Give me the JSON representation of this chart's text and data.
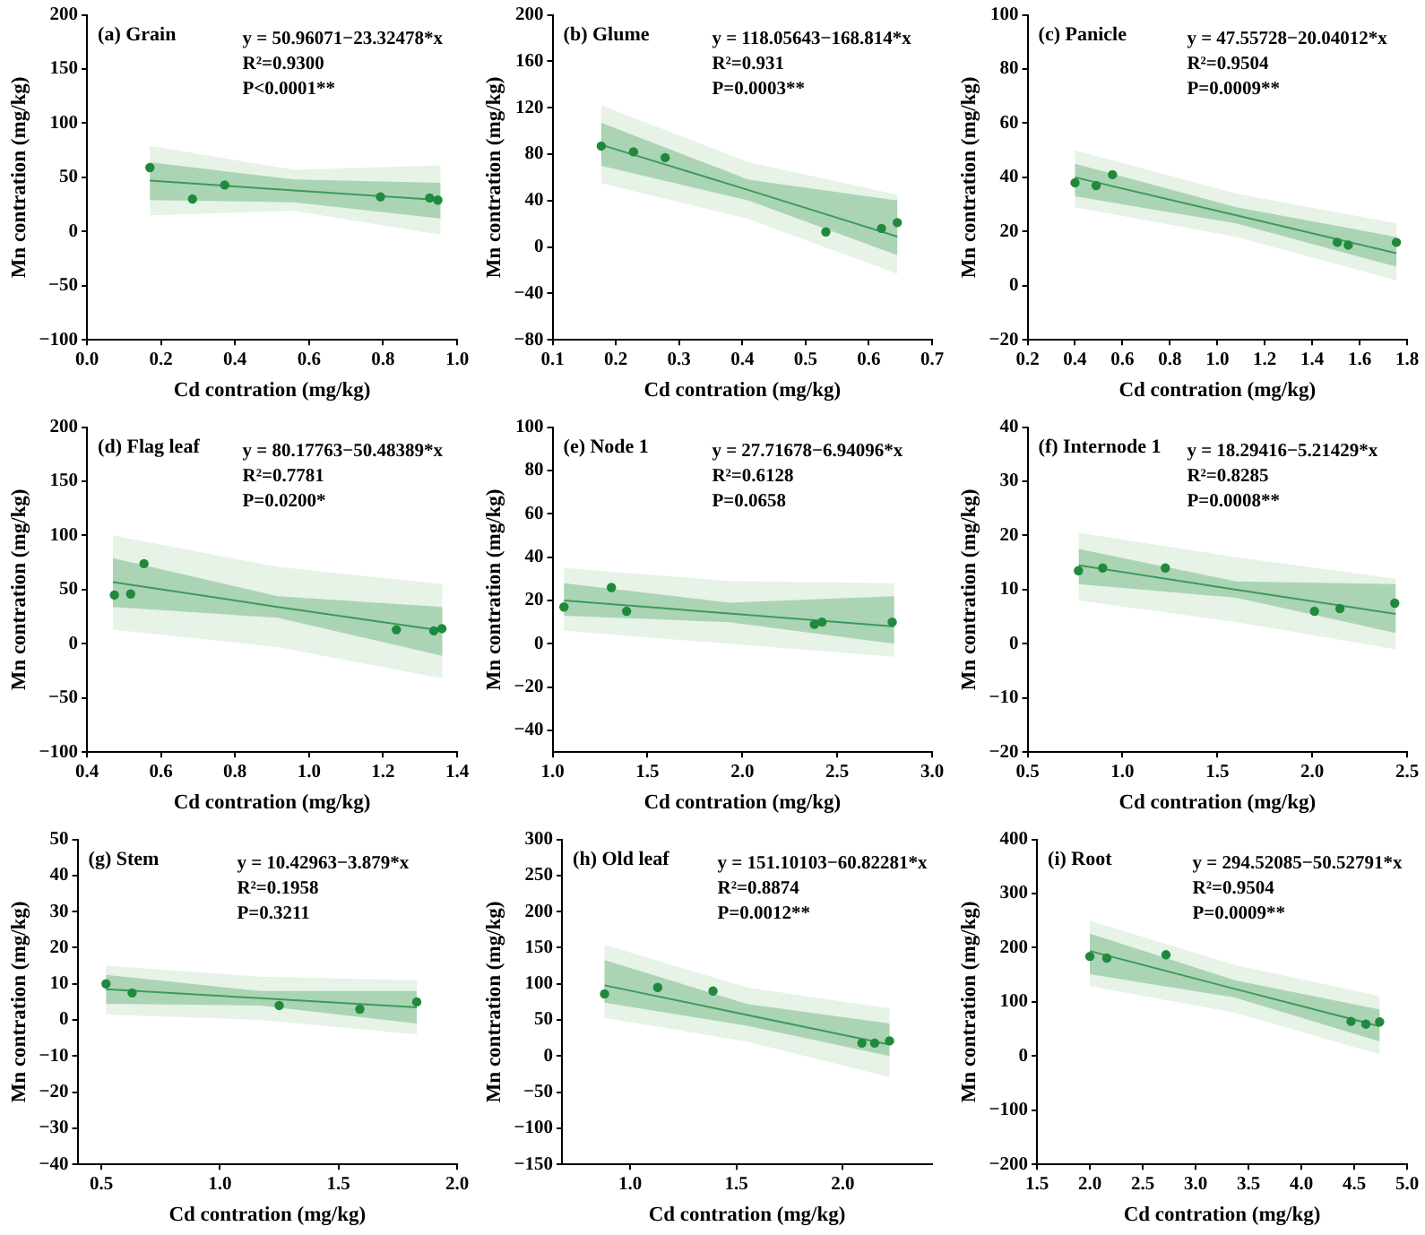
{
  "chart_data": [
    {
      "type": "scatter",
      "title": "(a) Grain",
      "xlabel": "Cd contration (mg/kg)",
      "ylabel": "Mn contration (mg/kg)",
      "xlim": [
        0,
        1
      ],
      "ylim": [
        -100,
        200
      ],
      "xticks": [
        {
          "value": 0,
          "label": "0.0"
        },
        0.2,
        0.4,
        0.6,
        0.8,
        {
          "value": 1,
          "label": "1.0"
        }
      ],
      "yticks": [
        -100,
        -50,
        0,
        50,
        100,
        150,
        200
      ],
      "annotations": [
        "y = 50.96071−23.32478*x",
        "R²=0.9300",
        "P<0.0001**"
      ],
      "series": [
        {
          "type": "line",
          "color": "#b8dcb8",
          "x": [
            0.17,
            0.56,
            0.955
          ],
          "values": [
            null,
            null,
            null
          ],
          "lower": [
            15,
            19,
            -3
          ],
          "upper": [
            79,
            57,
            61
          ]
        },
        {
          "type": "line",
          "color": "#3d9a5a",
          "x": [
            0.17,
            0.56,
            0.955
          ],
          "values": [
            47,
            38,
            29
          ],
          "lower": [
            29,
            27,
            12
          ],
          "upper": [
            64,
            48,
            45
          ]
        },
        {
          "type": "scatter",
          "color": "#1f8a3c",
          "marker": "circle",
          "x": [
            0.17,
            0.285,
            0.372,
            0.793,
            0.926,
            0.948
          ],
          "values": [
            59,
            30,
            43,
            32,
            31,
            29
          ]
        }
      ]
    },
    {
      "type": "scatter",
      "title": "(b) Glume",
      "xlabel": "Cd contration (mg/kg)",
      "ylabel": "Mn contration (mg/kg)",
      "xlim": [
        0.1,
        0.7
      ],
      "ylim": [
        -80,
        200
      ],
      "xticks": [
        0.1,
        0.2,
        0.3,
        0.4,
        0.5,
        0.6,
        0.7
      ],
      "yticks": [
        -80,
        -40,
        0,
        40,
        80,
        120,
        160,
        200
      ],
      "annotations": [
        "y = 118.05643−168.814*x",
        "R²=0.931",
        "P=0.0003**"
      ],
      "series": [
        {
          "type": "line",
          "color": "#b8dcb8",
          "x": [
            0.177,
            0.41,
            0.645
          ],
          "values": [
            null,
            null,
            null
          ],
          "lower": [
            55,
            24,
            -23
          ],
          "upper": [
            122,
            73,
            45
          ]
        },
        {
          "type": "line",
          "color": "#3d9a5a",
          "x": [
            0.177,
            0.41,
            0.645
          ],
          "values": [
            88,
            49,
            9
          ],
          "lower": [
            70,
            40,
            -7
          ],
          "upper": [
            107,
            58,
            40
          ]
        },
        {
          "type": "scatter",
          "color": "#1f8a3c",
          "marker": "circle",
          "x": [
            0.177,
            0.228,
            0.278,
            0.532,
            0.62,
            0.645
          ],
          "values": [
            87,
            82,
            77,
            13,
            16,
            21
          ]
        }
      ]
    },
    {
      "type": "scatter",
      "title": "(c) Panicle",
      "xlabel": "Cd contration (mg/kg)",
      "ylabel": "Mn contration (mg/kg)",
      "xlim": [
        0.2,
        1.8
      ],
      "ylim": [
        -20,
        100
      ],
      "xticks": [
        0.2,
        0.4,
        0.6,
        0.8,
        {
          "value": 1,
          "label": "1.0"
        },
        1.2,
        1.4,
        1.6,
        1.8
      ],
      "yticks": [
        -20,
        0,
        20,
        40,
        60,
        80,
        100
      ],
      "annotations": [
        "y = 47.55728−20.04012*x",
        "R²=0.9504",
        "P=0.0009**"
      ],
      "series": [
        {
          "type": "line",
          "color": "#b8dcb8",
          "x": [
            0.4,
            1.08,
            1.755
          ],
          "values": [
            null,
            null,
            null
          ],
          "lower": [
            29,
            18,
            2
          ],
          "upper": [
            50,
            34,
            23
          ]
        },
        {
          "type": "line",
          "color": "#3d9a5a",
          "x": [
            0.4,
            1.08,
            1.755
          ],
          "values": [
            40,
            26,
            12
          ],
          "lower": [
            33,
            23,
            7
          ],
          "upper": [
            45,
            29,
            18
          ]
        },
        {
          "type": "scatter",
          "color": "#1f8a3c",
          "marker": "circle",
          "x": [
            0.4,
            0.489,
            0.558,
            1.506,
            1.552,
            1.755
          ],
          "values": [
            38,
            37,
            41,
            16,
            15,
            16
          ]
        }
      ]
    },
    {
      "type": "scatter",
      "title": "(d) Flag leaf",
      "xlabel": "Cd contration (mg/kg)",
      "ylabel": "Mn contration (mg/kg)",
      "xlim": [
        0.4,
        1.4
      ],
      "ylim": [
        -100,
        200
      ],
      "xticks": [
        0.4,
        0.6,
        0.8,
        {
          "value": 1,
          "label": "1.0"
        },
        1.2,
        1.4
      ],
      "yticks": [
        -100,
        -50,
        0,
        50,
        100,
        150,
        200
      ],
      "annotations": [
        "y = 80.17763−50.48389*x",
        "R²=0.7781",
        "P=0.0200*"
      ],
      "series": [
        {
          "type": "line",
          "color": "#b8dcb8",
          "x": [
            0.47,
            0.915,
            1.36
          ],
          "values": [
            null,
            null,
            null
          ],
          "lower": [
            13,
            -3,
            -32
          ],
          "upper": [
            100,
            71,
            55
          ]
        },
        {
          "type": "line",
          "color": "#3d9a5a",
          "x": [
            0.47,
            0.915,
            1.36
          ],
          "values": [
            57,
            34,
            12
          ],
          "lower": [
            34,
            24,
            -11
          ],
          "upper": [
            79,
            44,
            34
          ]
        },
        {
          "type": "scatter",
          "color": "#1f8a3c",
          "marker": "circle",
          "x": [
            0.474,
            0.518,
            0.554,
            1.236,
            1.337,
            1.359
          ],
          "values": [
            45,
            46,
            74,
            13,
            12,
            14
          ]
        }
      ]
    },
    {
      "type": "scatter",
      "title": "(e) Node 1",
      "xlabel": "Cd contration (mg/kg)",
      "ylabel": "Mn contration (mg/kg)",
      "xlim": [
        1,
        3
      ],
      "ylim": [
        -50,
        100
      ],
      "xticks": [
        {
          "value": 1,
          "label": "1.0"
        },
        1.5,
        {
          "value": 2,
          "label": "2.0"
        },
        2.5,
        {
          "value": 3,
          "label": "3.0"
        }
      ],
      "yticks": [
        -40,
        -20,
        0,
        20,
        40,
        60,
        80,
        100
      ],
      "annotations": [
        "y = 27.71678−6.94096*x",
        "R²=0.6128",
        "P=0.0658"
      ],
      "series": [
        {
          "type": "line",
          "color": "#b8dcb8",
          "x": [
            1.06,
            1.93,
            2.8
          ],
          "values": [
            null,
            null,
            null
          ],
          "lower": [
            6,
            0,
            -6
          ],
          "upper": [
            35,
            29,
            28
          ]
        },
        {
          "type": "line",
          "color": "#3d9a5a",
          "x": [
            1.06,
            1.93,
            2.8
          ],
          "values": [
            20,
            14,
            8
          ],
          "lower": [
            13,
            10,
            0
          ],
          "upper": [
            28,
            19,
            22
          ]
        },
        {
          "type": "scatter",
          "color": "#1f8a3c",
          "marker": "circle",
          "x": [
            1.06,
            1.31,
            1.39,
            2.38,
            2.42,
            2.79
          ],
          "values": [
            17,
            26,
            15,
            9,
            10,
            10
          ]
        }
      ]
    },
    {
      "type": "scatter",
      "title": "(f) Internode 1",
      "xlabel": "Cd contration (mg/kg)",
      "ylabel": "Mn contration (mg/kg)",
      "xlim": [
        0.5,
        2.5
      ],
      "ylim": [
        -20,
        40
      ],
      "xticks": [
        0.5,
        {
          "value": 1,
          "label": "1.0"
        },
        1.5,
        {
          "value": 2,
          "label": "2.0"
        },
        2.5
      ],
      "yticks": [
        -20,
        -10,
        0,
        10,
        20,
        30,
        40
      ],
      "annotations": [
        "y = 18.29416−5.21429*x",
        "R²=0.8285",
        "P=0.0008**"
      ],
      "series": [
        {
          "type": "line",
          "color": "#b8dcb8",
          "x": [
            0.77,
            1.6,
            2.44
          ],
          "values": [
            null,
            null,
            null
          ],
          "lower": [
            8,
            4,
            -1
          ],
          "upper": [
            20.5,
            16,
            12
          ]
        },
        {
          "type": "line",
          "color": "#3d9a5a",
          "x": [
            0.77,
            1.6,
            2.44
          ],
          "values": [
            14.5,
            10,
            5.5
          ],
          "lower": [
            11,
            8.5,
            2
          ],
          "upper": [
            17.5,
            11.5,
            11
          ]
        },
        {
          "type": "scatter",
          "color": "#1f8a3c",
          "marker": "circle",
          "x": [
            0.768,
            0.896,
            1.226,
            2.012,
            2.146,
            2.435
          ],
          "values": [
            13.5,
            14,
            14,
            6,
            6.5,
            7.5
          ]
        }
      ]
    },
    {
      "type": "scatter",
      "title": "(g) Stem",
      "xlabel": "Cd contration (mg/kg)",
      "ylabel": "Mn contration (mg/kg)",
      "xlim": [
        0.4,
        2
      ],
      "ylim": [
        -40,
        50
      ],
      "xticks": [
        0.5,
        {
          "value": 1,
          "label": "1.0"
        },
        1.5,
        {
          "value": 2,
          "label": "2.0"
        }
      ],
      "yticks": [
        -40,
        -30,
        -20,
        -10,
        0,
        10,
        20,
        30,
        40,
        50
      ],
      "annotations": [
        "y = 10.42963−3.879*x",
        "R²=0.1958",
        "P=0.3211"
      ],
      "series": [
        {
          "type": "line",
          "color": "#b8dcb8",
          "x": [
            0.52,
            1.17,
            1.83
          ],
          "values": [
            null,
            null,
            null
          ],
          "lower": [
            1.5,
            0,
            -4
          ],
          "upper": [
            15,
            12,
            11
          ]
        },
        {
          "type": "line",
          "color": "#3d9a5a",
          "x": [
            0.52,
            1.17,
            1.83
          ],
          "values": [
            8.5,
            6,
            3.5
          ],
          "lower": [
            4.5,
            4,
            -1
          ],
          "upper": [
            12.5,
            8,
            8
          ]
        },
        {
          "type": "scatter",
          "color": "#1f8a3c",
          "marker": "circle",
          "x": [
            0.52,
            0.63,
            1.25,
            1.59,
            1.83
          ],
          "values": [
            10,
            7.5,
            4,
            3,
            5
          ]
        }
      ]
    },
    {
      "type": "scatter",
      "title": "(h) Old leaf",
      "xlabel": "Cd contration (mg/kg)",
      "ylabel": "Mn contration (mg/kg)",
      "xlim": [
        0.68,
        2.42
      ],
      "ylim": [
        -150,
        300
      ],
      "xticks": [
        {
          "value": 1,
          "label": "1.0"
        },
        1.5,
        {
          "value": 2,
          "label": "2.0"
        }
      ],
      "yticks": [
        -150,
        -100,
        -50,
        0,
        50,
        100,
        150,
        200,
        250,
        300
      ],
      "annotations": [
        "y = 151.10103−60.82281*x",
        "R²=0.8874",
        "P=0.0012**"
      ],
      "series": [
        {
          "type": "line",
          "color": "#b8dcb8",
          "x": [
            0.88,
            1.55,
            2.22
          ],
          "values": [
            null,
            null,
            null
          ],
          "lower": [
            53,
            20,
            -29
          ],
          "upper": [
            154,
            95,
            66
          ]
        },
        {
          "type": "line",
          "color": "#3d9a5a",
          "x": [
            0.88,
            1.55,
            2.22
          ],
          "values": [
            98,
            57,
            16
          ],
          "lower": [
            74,
            42,
            0
          ],
          "upper": [
            133,
            72,
            45
          ]
        },
        {
          "type": "scatter",
          "color": "#1f8a3c",
          "marker": "circle",
          "x": [
            0.88,
            1.13,
            1.39,
            2.09,
            2.15,
            2.22
          ],
          "values": [
            86,
            95,
            90,
            18,
            18,
            21
          ]
        }
      ]
    },
    {
      "type": "scatter",
      "title": "(i) Root",
      "xlabel": "Cd contration (mg/kg)",
      "ylabel": "Mn contration (mg/kg)",
      "xlim": [
        1.5,
        5
      ],
      "ylim": [
        -200,
        400
      ],
      "xticks": [
        1.5,
        {
          "value": 2,
          "label": "2.0"
        },
        2.5,
        {
          "value": 3,
          "label": "3.0"
        },
        3.5,
        {
          "value": 4,
          "label": "4.0"
        },
        4.5,
        {
          "value": 5,
          "label": "5.0"
        }
      ],
      "yticks": [
        -200,
        -100,
        0,
        100,
        200,
        300,
        400
      ],
      "annotations": [
        "y = 294.52085−50.52791*x",
        "R²=0.9504",
        "P=0.0009**"
      ],
      "series": [
        {
          "type": "line",
          "color": "#b8dcb8",
          "x": [
            2,
            3.37,
            4.74
          ],
          "values": [
            null,
            null,
            null
          ],
          "lower": [
            129,
            80,
            3
          ],
          "upper": [
            250,
            168,
            111
          ]
        },
        {
          "type": "line",
          "color": "#3d9a5a",
          "x": [
            2,
            3.37,
            4.74
          ],
          "values": [
            194,
            124,
            55
          ],
          "lower": [
            151,
            108,
            27
          ],
          "upper": [
            226,
            140,
            86
          ]
        },
        {
          "type": "scatter",
          "color": "#1f8a3c",
          "marker": "circle",
          "x": [
            2,
            2.16,
            2.72,
            4.47,
            4.61,
            4.74
          ],
          "values": [
            184,
            181,
            187,
            64,
            59,
            63
          ]
        }
      ]
    }
  ]
}
